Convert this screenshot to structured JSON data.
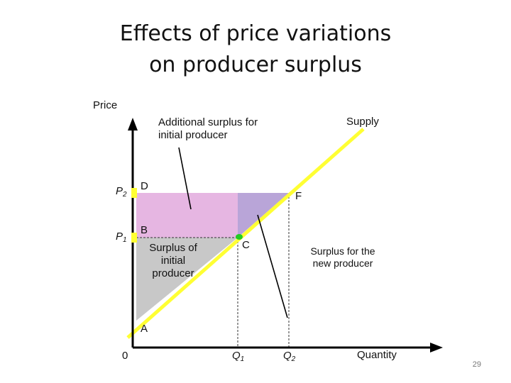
{
  "title_line1": "Effects of price variations",
  "title_line2": "on producer surplus",
  "axes": {
    "y_label": "Price",
    "x_label": "Quantity",
    "origin": "0"
  },
  "ticks": {
    "p1": "P",
    "p1_sub": "1",
    "p2": "P",
    "p2_sub": "2",
    "q1": "Q",
    "q1_sub": "1",
    "q2": "Q",
    "q2_sub": "2"
  },
  "curve_label": "Supply",
  "points": {
    "a": "A",
    "b": "B",
    "c": "C",
    "d": "D",
    "f": "F"
  },
  "annotations": {
    "additional_line1": "Additional surplus for",
    "additional_line2": "initial producer",
    "initial_line1": "Surplus of",
    "initial_line2": "initial",
    "initial_line3": "producer",
    "new_line1": "Surplus for the",
    "new_line2": "new producer"
  },
  "page_number": "29",
  "colors": {
    "supply": "#ffff33",
    "initial_surplus": "#c8c8c8",
    "additional_surplus": "#e6b6e2",
    "new_surplus": "#b9a5d8",
    "point": "#22cc22"
  }
}
